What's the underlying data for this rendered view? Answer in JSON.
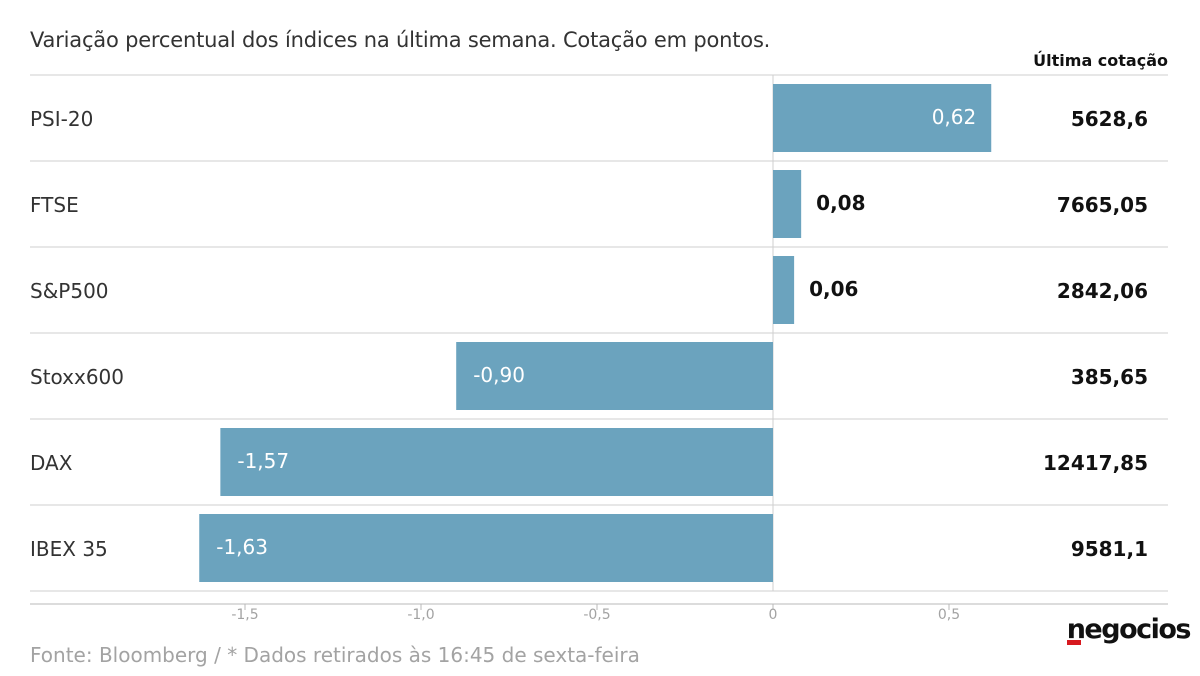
{
  "subtitle": "Variação percentual dos índices na última semana. Cotação em pontos.",
  "last_quote_header": "Última cotação",
  "source": "Fonte: Bloomberg / * Dados retirados às 16:45 de sexta-feira",
  "logo": "negocios",
  "colors": {
    "bar": "#6ba3be",
    "grid": "#cfcfcf",
    "axis_tick": "#a3a3a3",
    "logo_accent": "#d7191f"
  },
  "chart_data": {
    "type": "bar",
    "orientation": "horizontal",
    "categories": [
      "PSI-20",
      "FTSE",
      "S&P500",
      "Stoxx600",
      "DAX",
      "IBEX 35"
    ],
    "values": [
      0.62,
      0.08,
      0.06,
      -0.9,
      -1.57,
      -1.63
    ],
    "value_labels": [
      "0,62",
      "0,08",
      "0,06",
      "-0,90",
      "-1,57",
      "-1,63"
    ],
    "last_quote": [
      "5628,6",
      "7665,05",
      "2842,06",
      "385,65",
      "12417,85",
      "9581,1"
    ],
    "xticks": [
      -1.5,
      -1.0,
      -0.5,
      0,
      0.5
    ],
    "xtick_labels": [
      "-1,5",
      "-1,0",
      "-0,5",
      "0",
      "0,5"
    ],
    "xlim": [
      -1.7,
      0.7
    ],
    "title": "",
    "xlabel": "",
    "ylabel": ""
  }
}
